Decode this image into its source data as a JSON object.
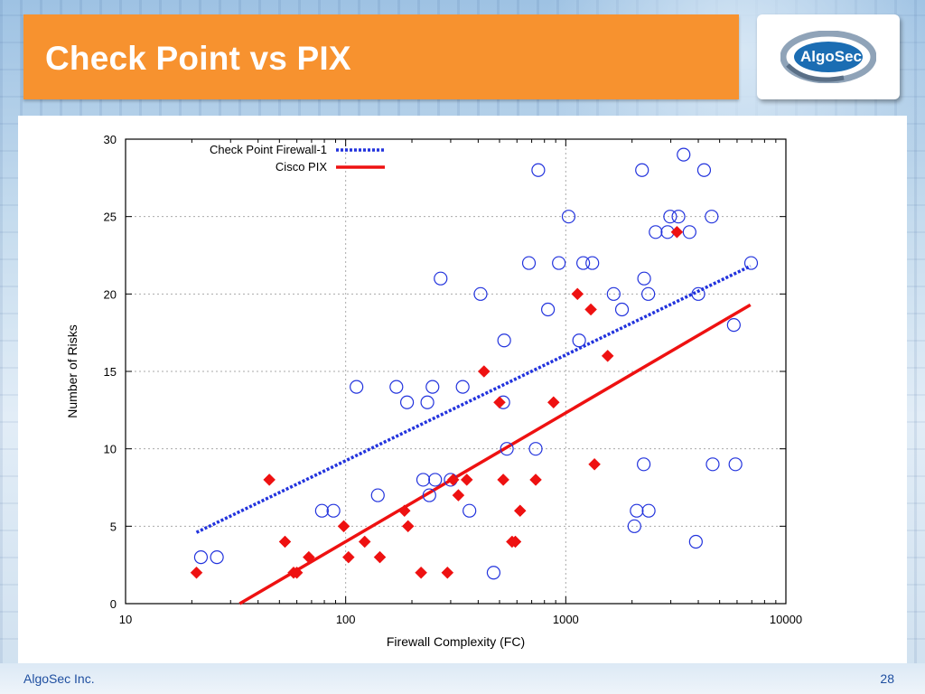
{
  "slide": {
    "title": "Check Point vs PIX",
    "logo_text": "AlgoSec",
    "footer_company": "AlgoSec Inc.",
    "page_number": "28"
  },
  "colors": {
    "title_bar": "#f7922f",
    "checkpoint": "#2233dd",
    "pix": "#ee1111"
  },
  "chart_data": {
    "type": "scatter",
    "xlabel": "Firewall Complexity (FC)",
    "ylabel": "Number of Risks",
    "x_scale": "log",
    "xlim": [
      10,
      10000
    ],
    "ylim": [
      0,
      30
    ],
    "x_ticks": [
      10,
      100,
      1000,
      10000
    ],
    "x_tick_labels": [
      "10",
      "100",
      "1000",
      "10000"
    ],
    "y_ticks": [
      0,
      5,
      10,
      15,
      20,
      25,
      30
    ],
    "y_tick_labels": [
      "0",
      "5",
      "10",
      "15",
      "20",
      "25",
      "30"
    ],
    "grid": true,
    "legend_position": "top-left",
    "legend": [
      {
        "name": "Check Point Firewall-1",
        "style": "dotted-line",
        "color": "#2233dd"
      },
      {
        "name": "Cisco PIX",
        "style": "solid-line",
        "color": "#ee1111"
      }
    ],
    "series": [
      {
        "name": "Check Point Firewall-1",
        "marker": "circle",
        "color": "#2233dd",
        "points": [
          [
            22,
            3
          ],
          [
            26,
            3
          ],
          [
            78,
            6
          ],
          [
            88,
            6
          ],
          [
            112,
            14
          ],
          [
            140,
            7
          ],
          [
            170,
            14
          ],
          [
            190,
            13
          ],
          [
            225,
            8
          ],
          [
            235,
            13
          ],
          [
            240,
            7
          ],
          [
            248,
            14
          ],
          [
            255,
            8
          ],
          [
            270,
            21
          ],
          [
            300,
            8
          ],
          [
            340,
            14
          ],
          [
            365,
            6
          ],
          [
            410,
            20
          ],
          [
            470,
            2
          ],
          [
            520,
            13
          ],
          [
            525,
            17
          ],
          [
            540,
            10
          ],
          [
            680,
            22
          ],
          [
            730,
            10
          ],
          [
            750,
            28
          ],
          [
            830,
            19
          ],
          [
            930,
            22
          ],
          [
            1030,
            25
          ],
          [
            1150,
            17
          ],
          [
            1200,
            22
          ],
          [
            1320,
            22
          ],
          [
            1650,
            20
          ],
          [
            1800,
            19
          ],
          [
            2050,
            5
          ],
          [
            2100,
            6
          ],
          [
            2220,
            28
          ],
          [
            2260,
            9
          ],
          [
            2270,
            21
          ],
          [
            2370,
            20
          ],
          [
            2380,
            6
          ],
          [
            2560,
            24
          ],
          [
            2900,
            24
          ],
          [
            2980,
            25
          ],
          [
            3250,
            25
          ],
          [
            3430,
            29
          ],
          [
            3650,
            24
          ],
          [
            3900,
            4
          ],
          [
            4000,
            20
          ],
          [
            4250,
            28
          ],
          [
            4600,
            25
          ],
          [
            4650,
            9
          ],
          [
            5800,
            18
          ],
          [
            5900,
            9
          ],
          [
            6950,
            22
          ]
        ]
      },
      {
        "name": "Cisco PIX",
        "marker": "diamond",
        "color": "#ee1111",
        "points": [
          [
            21,
            2
          ],
          [
            45,
            8
          ],
          [
            53,
            4
          ],
          [
            58,
            2
          ],
          [
            60,
            2
          ],
          [
            68,
            3
          ],
          [
            98,
            5
          ],
          [
            103,
            3
          ],
          [
            122,
            4
          ],
          [
            143,
            3
          ],
          [
            185,
            6
          ],
          [
            192,
            5
          ],
          [
            220,
            2
          ],
          [
            290,
            2
          ],
          [
            308,
            8
          ],
          [
            325,
            7
          ],
          [
            355,
            8
          ],
          [
            425,
            15
          ],
          [
            500,
            13
          ],
          [
            520,
            8
          ],
          [
            570,
            4
          ],
          [
            590,
            4
          ],
          [
            620,
            6
          ],
          [
            730,
            8
          ],
          [
            880,
            13
          ],
          [
            1130,
            20
          ],
          [
            1300,
            19
          ],
          [
            1350,
            9
          ],
          [
            1550,
            16
          ],
          [
            3200,
            24
          ]
        ]
      }
    ],
    "trend_lines": [
      {
        "name": "Check Point Firewall-1",
        "style": "dotted",
        "color": "#2233dd",
        "from": [
          21,
          4.6
        ],
        "to": [
          6900,
          21.8
        ]
      },
      {
        "name": "Cisco PIX",
        "style": "solid",
        "color": "#ee1111",
        "from": [
          33,
          0
        ],
        "to": [
          6900,
          19.3
        ]
      }
    ]
  }
}
